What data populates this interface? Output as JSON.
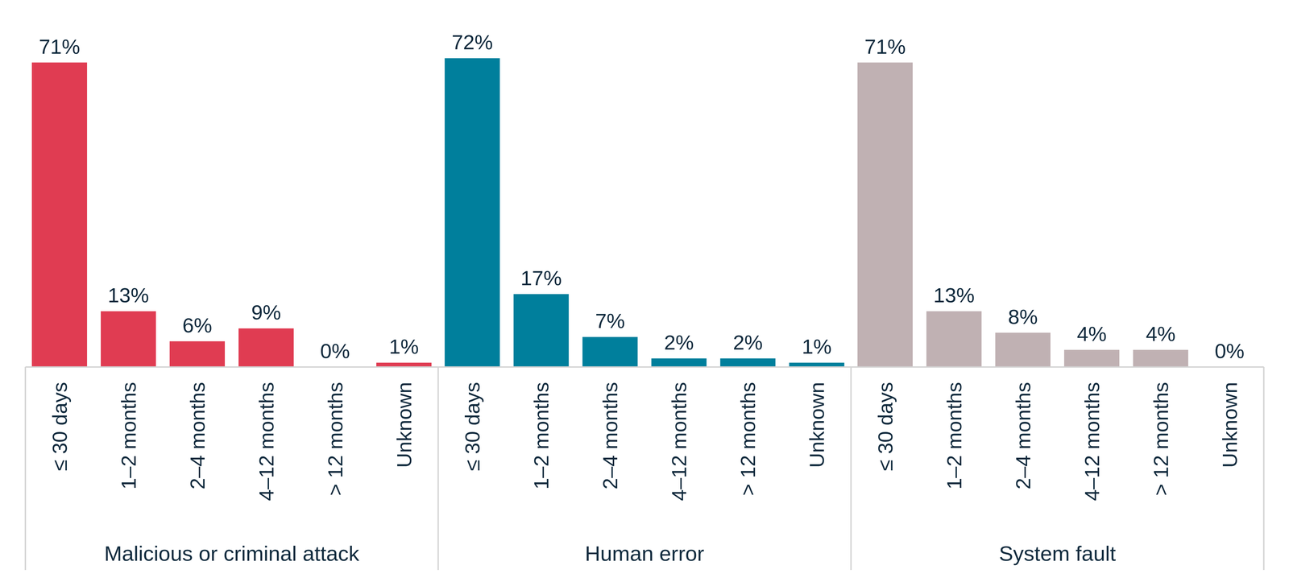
{
  "chart_data": [
    {
      "type": "bar",
      "title": "Malicious or criminal attack",
      "categories": [
        "≤ 30 days",
        "1–2 months",
        "2–4 months",
        "4–12 months",
        "> 12 months",
        "Unknown"
      ],
      "values": [
        71,
        13,
        6,
        9,
        0,
        1
      ],
      "value_labels": [
        "71%",
        "13%",
        "6%",
        "9%",
        "0%",
        "1%"
      ],
      "color": "#e03c52",
      "ylim": [
        0,
        72
      ],
      "data_labels": true,
      "tick_labels": "x"
    },
    {
      "type": "bar",
      "title": "Human error",
      "categories": [
        "≤ 30 days",
        "1–2 months",
        "2–4 months",
        "4–12 months",
        "> 12 months",
        "Unknown"
      ],
      "values": [
        72,
        17,
        7,
        2,
        2,
        1
      ],
      "value_labels": [
        "72%",
        "17%",
        "7%",
        "2%",
        "2%",
        "1%"
      ],
      "color": "#007f9c",
      "ylim": [
        0,
        72
      ],
      "data_labels": true,
      "tick_labels": "x"
    },
    {
      "type": "bar",
      "title": "System fault",
      "categories": [
        "≤ 30 days",
        "1–2 months",
        "2–4 months",
        "4–12 months",
        "> 12 months",
        "Unknown"
      ],
      "values": [
        71,
        13,
        8,
        4,
        4,
        0
      ],
      "value_labels": [
        "71%",
        "13%",
        "8%",
        "4%",
        "4%",
        "0%"
      ],
      "color": "#c0b1b3",
      "ylim": [
        0,
        72
      ],
      "data_labels": true,
      "tick_labels": "x"
    }
  ]
}
